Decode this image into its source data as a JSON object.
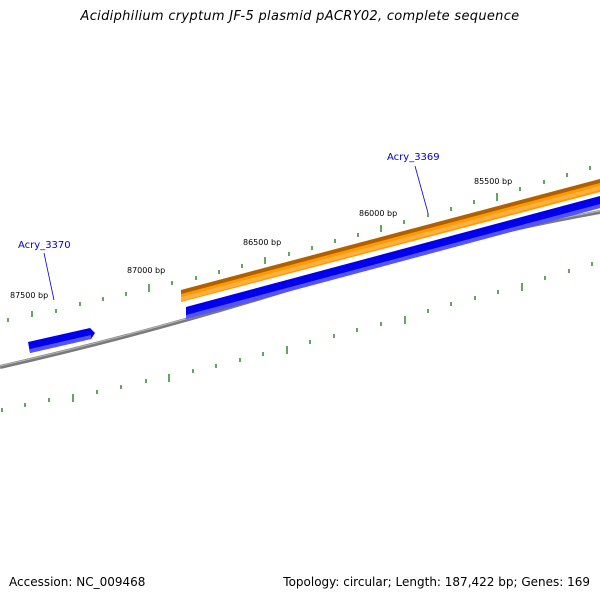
{
  "title": "Acidiphilium cryptum JF-5 plasmid pACRY02, complete sequence",
  "accession": "Accession: NC_009468",
  "summary": "Topology: circular; Length: 187,422 bp; Genes: 169",
  "colors": {
    "backbone": "#888888",
    "tick": "#2a8a2a",
    "gene_forward_fill": "#0000ee",
    "gene_forward_shadow": "#8888ff",
    "orange_fill": "#ff9900",
    "orange_edge": "#b06000",
    "gene_label": "#0000cc"
  },
  "scale_labels": [
    "85500 bp",
    "86000 bp",
    "86500 bp",
    "87000 bp",
    "87500 bp"
  ],
  "genes": [
    {
      "label": "Acry_3369"
    },
    {
      "label": "Acry_3370"
    }
  ]
}
